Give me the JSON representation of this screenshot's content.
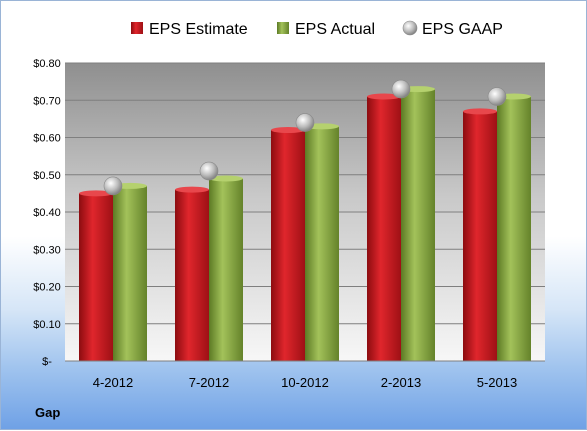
{
  "chart_data": {
    "type": "bar",
    "title": "",
    "xlabel": "",
    "ylabel": "",
    "categories": [
      "4-2012",
      "7-2012",
      "10-2012",
      "2-2013",
      "5-2013"
    ],
    "series": [
      {
        "name": "EPS Estimate",
        "kind": "bar",
        "color": "#c0181e",
        "values": [
          0.45,
          0.46,
          0.62,
          0.71,
          0.67
        ]
      },
      {
        "name": "EPS Actual",
        "kind": "bar",
        "color": "#82a03c",
        "values": [
          0.47,
          0.49,
          0.63,
          0.73,
          0.71
        ]
      },
      {
        "name": "EPS GAAP",
        "kind": "marker",
        "color": "#b4b4b4",
        "values": [
          0.47,
          0.51,
          0.64,
          0.73,
          0.71
        ]
      }
    ],
    "ylim": [
      0,
      0.8
    ],
    "yticks": [
      {
        "value": 0.8,
        "label": "$0.80"
      },
      {
        "value": 0.7,
        "label": "$0.70"
      },
      {
        "value": 0.6,
        "label": "$0.60"
      },
      {
        "value": 0.5,
        "label": "$0.50"
      },
      {
        "value": 0.4,
        "label": "$0.40"
      },
      {
        "value": 0.3,
        "label": "$0.30"
      },
      {
        "value": 0.2,
        "label": "$0.20"
      },
      {
        "value": 0.1,
        "label": "$0.10"
      },
      {
        "value": 0,
        "label": "$-"
      }
    ],
    "grid": true,
    "legend_position": "top-center",
    "footer_label": "Gap"
  }
}
